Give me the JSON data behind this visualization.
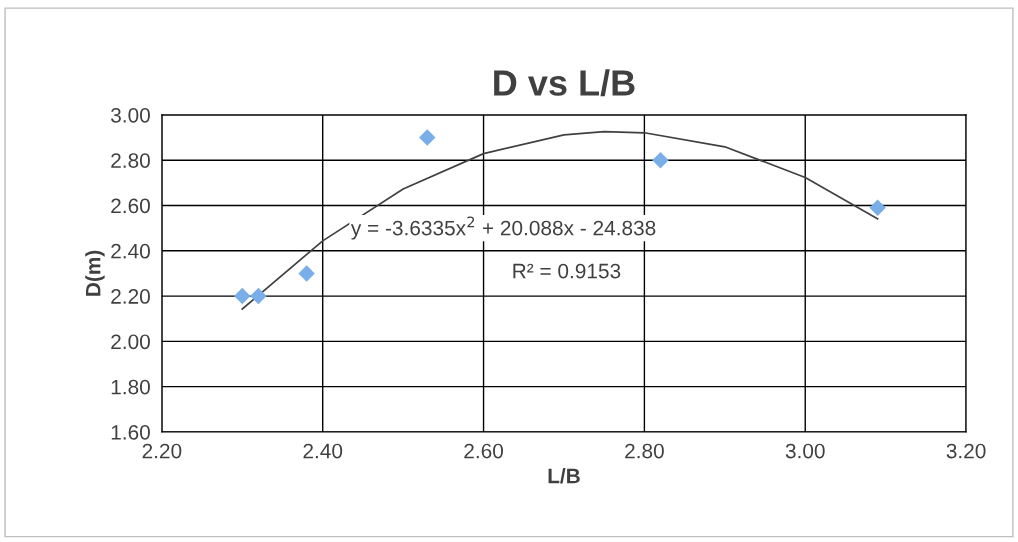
{
  "chart_data": {
    "type": "scatter",
    "title": "D vs L/B",
    "xlabel": "L/B",
    "ylabel": "D(m)",
    "xlim": [
      2.2,
      3.2
    ],
    "xticks": [
      {
        "value": 2.2,
        "label": "2.20"
      },
      {
        "value": 2.4,
        "label": "2.40"
      },
      {
        "value": 2.6,
        "label": "2.60"
      },
      {
        "value": 2.8,
        "label": "2.80"
      },
      {
        "value": 3.0,
        "label": "3.00"
      },
      {
        "value": 3.2,
        "label": "3.20"
      }
    ],
    "ylim": [
      1.6,
      3.0
    ],
    "yticks": [
      {
        "value": 1.6,
        "label": "1.60"
      },
      {
        "value": 1.8,
        "label": "1.80"
      },
      {
        "value": 2.0,
        "label": "2.00"
      },
      {
        "value": 2.2,
        "label": "2.20"
      },
      {
        "value": 2.4,
        "label": "2.40"
      },
      {
        "value": 2.6,
        "label": "2.60"
      },
      {
        "value": 2.8,
        "label": "2.80"
      },
      {
        "value": 3.0,
        "label": "3.00"
      }
    ],
    "grid": true,
    "marker": "diamond",
    "series": [
      {
        "color": "#7aaee8",
        "x": [
          2.3,
          2.32,
          2.38,
          2.53,
          2.82,
          3.09
        ],
        "values": [
          2.2,
          2.2,
          2.3,
          2.9,
          2.8,
          2.59
        ]
      },
      {
        "type": "line",
        "color": "#404040",
        "marker": "none",
        "line_style": "solid",
        "x": [
          2.3,
          2.4,
          2.5,
          2.6,
          2.7,
          2.75,
          2.8,
          2.9,
          3.0,
          3.09
        ],
        "values": [
          2.143,
          2.444,
          2.673,
          2.829,
          2.912,
          2.926,
          2.921,
          2.859,
          2.724,
          2.541
        ]
      }
    ],
    "annotations": [
      "y = -3.6335x$^{2}$ + 20.088x - 24.838",
      "R² = 0.9153"
    ]
  }
}
